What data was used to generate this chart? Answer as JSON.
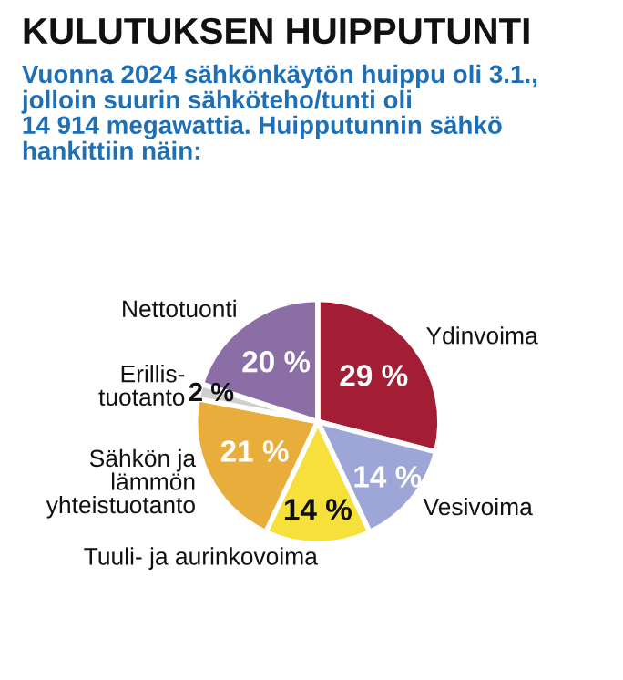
{
  "chart_data": {
    "type": "pie",
    "title": "KULUTUKSEN HUIPPUTUNTI",
    "subtitle": "Vuonna 2024 sähkönkäytön huippu oli 3.1.,\njolloin suurin sähköteho/tunti oli\n14 914 megawattia. Huipputunnin sähkö\nhankittiin näin:",
    "categories": [
      "Ydinvoima",
      "Vesivoima",
      "Tuuli- ja aurinkovoima",
      "Sähkön ja\nlämmön\nyhteistuotanto",
      "Erillis-\ntuotanto",
      "Nettotuonti"
    ],
    "values": [
      29,
      14,
      14,
      21,
      2,
      20
    ],
    "colors": [
      "#a31d35",
      "#9da6d6",
      "#f6e03b",
      "#e9ad3b",
      "#cfcfcf",
      "#8c6ea7"
    ],
    "value_labels": [
      "29 %",
      "14 %",
      "14 %",
      "21 %",
      "2 %",
      "20 %"
    ]
  }
}
